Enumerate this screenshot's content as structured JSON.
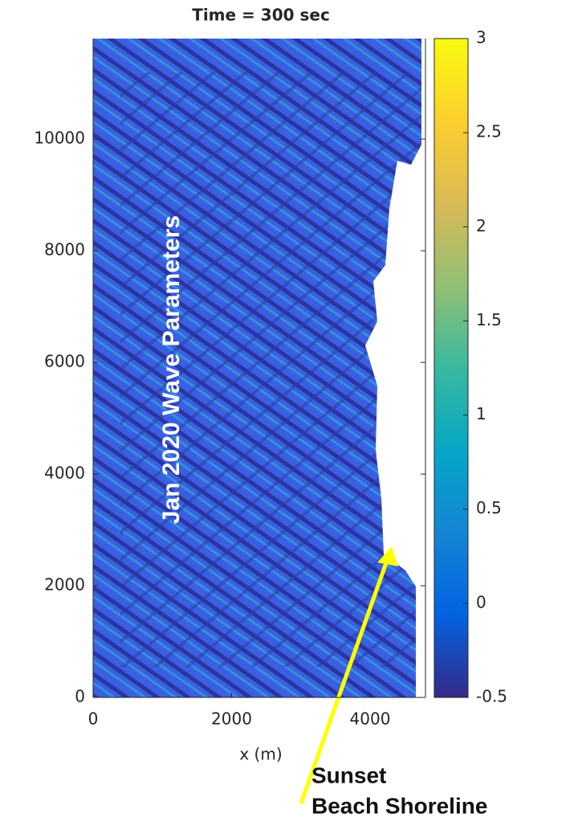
{
  "chart_data": {
    "type": "heatmap",
    "title": "Time = 300 sec",
    "xlabel": "x (m)",
    "xlim": [
      0,
      4800
    ],
    "xticks": [
      0,
      2000,
      4000
    ],
    "ylim": [
      0,
      11800
    ],
    "yticks": [
      0,
      2000,
      4000,
      6000,
      8000,
      10000
    ],
    "clim": [
      -0.5,
      3
    ],
    "cticks": [
      -0.5,
      0,
      0.5,
      1,
      1.5,
      2,
      2.5,
      3
    ],
    "colormap": [
      "#352a87",
      "#0363e1",
      "#1485d4",
      "#06a7c6",
      "#38b99e",
      "#92bf73",
      "#d9ba56",
      "#fcce2e",
      "#f9fb0e"
    ],
    "annotation": "Jan 2020 Wave Parameters",
    "arrow_label": [
      "Sunset",
      "Beach Shoreline"
    ],
    "arrow_color": "#ffff00"
  }
}
